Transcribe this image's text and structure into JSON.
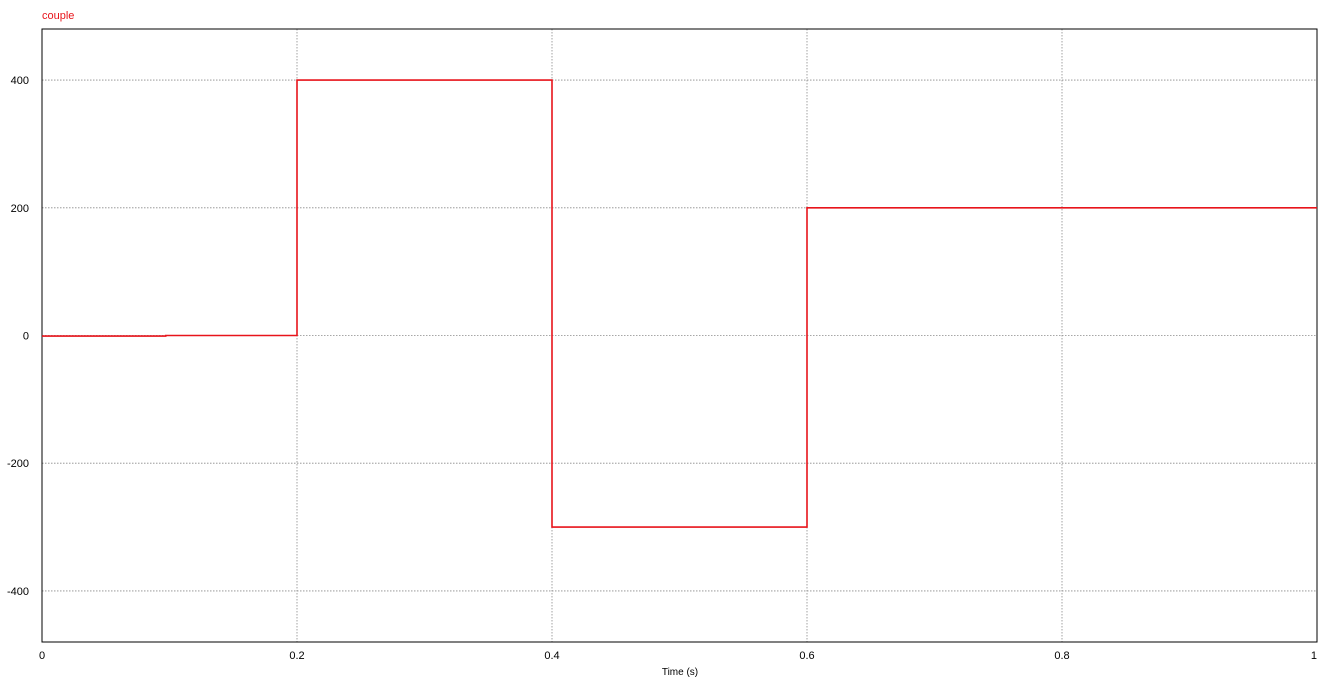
{
  "chart_data": {
    "type": "line",
    "xlabel": "Time (s)",
    "ylabel": "",
    "xlim": [
      0,
      1
    ],
    "ylim": [
      -480,
      480
    ],
    "x_ticks": [
      0,
      0.2,
      0.4,
      0.6,
      0.8,
      1
    ],
    "x_tick_labels": [
      "0",
      "0.2",
      "0.4",
      "0.6",
      "0.8",
      "1"
    ],
    "y_ticks": [
      400,
      200,
      0,
      -200,
      -400
    ],
    "y_tick_labels": [
      "400",
      "200",
      "0",
      "-200",
      "-400"
    ],
    "grid": true,
    "legend_placement": "top-left",
    "series": [
      {
        "name": "couple",
        "color": "#e8141b",
        "step": true,
        "x": [
          0,
          0.097,
          0.097,
          0.2,
          0.2,
          0.4,
          0.4,
          0.6,
          0.6,
          1.0
        ],
        "y": [
          -1,
          -1,
          0,
          0,
          400,
          400,
          -300,
          -300,
          200,
          200
        ]
      }
    ]
  }
}
